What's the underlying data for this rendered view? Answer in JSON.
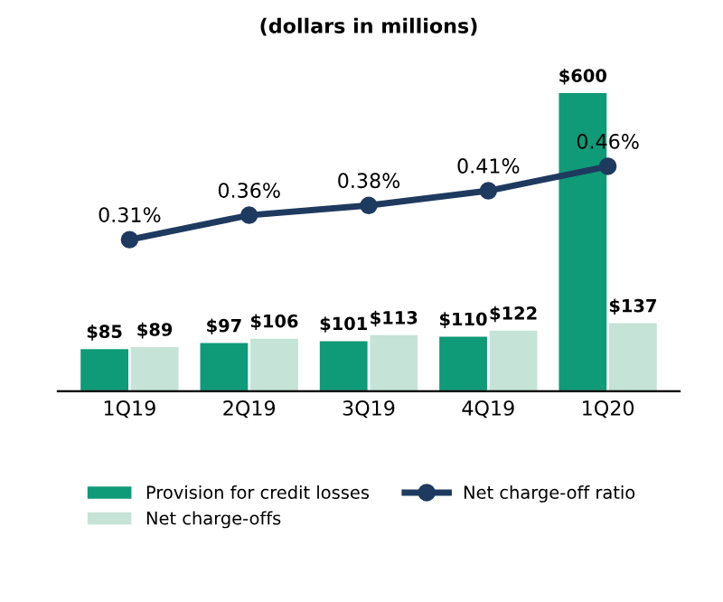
{
  "chart_data": {
    "type": "bar",
    "title": "(dollars in millions)",
    "categories": [
      "1Q19",
      "2Q19",
      "3Q19",
      "4Q19",
      "1Q20"
    ],
    "series": [
      {
        "name": "Provision for credit losses",
        "color": "#0f9a78",
        "values": [
          85,
          97,
          101,
          110,
          600
        ],
        "value_labels": [
          "$85",
          "$97",
          "$101",
          "$110",
          "$600"
        ]
      },
      {
        "name": "Net charge-offs",
        "color": "#c5e3d6",
        "values": [
          89,
          106,
          113,
          122,
          137
        ],
        "value_labels": [
          "$89",
          "$106",
          "$113",
          "$122",
          "$137"
        ]
      },
      {
        "name": "Net charge-off ratio",
        "type": "line",
        "axis": "y2",
        "color": "#1f3a5f",
        "marker": "circle",
        "values": [
          0.31,
          0.36,
          0.38,
          0.41,
          0.46
        ],
        "value_labels": [
          "0.31%",
          "0.36%",
          "0.38%",
          "0.41%",
          "0.46%"
        ]
      }
    ],
    "tick_labels": "x",
    "legend": "bottom",
    "grid": false
  }
}
